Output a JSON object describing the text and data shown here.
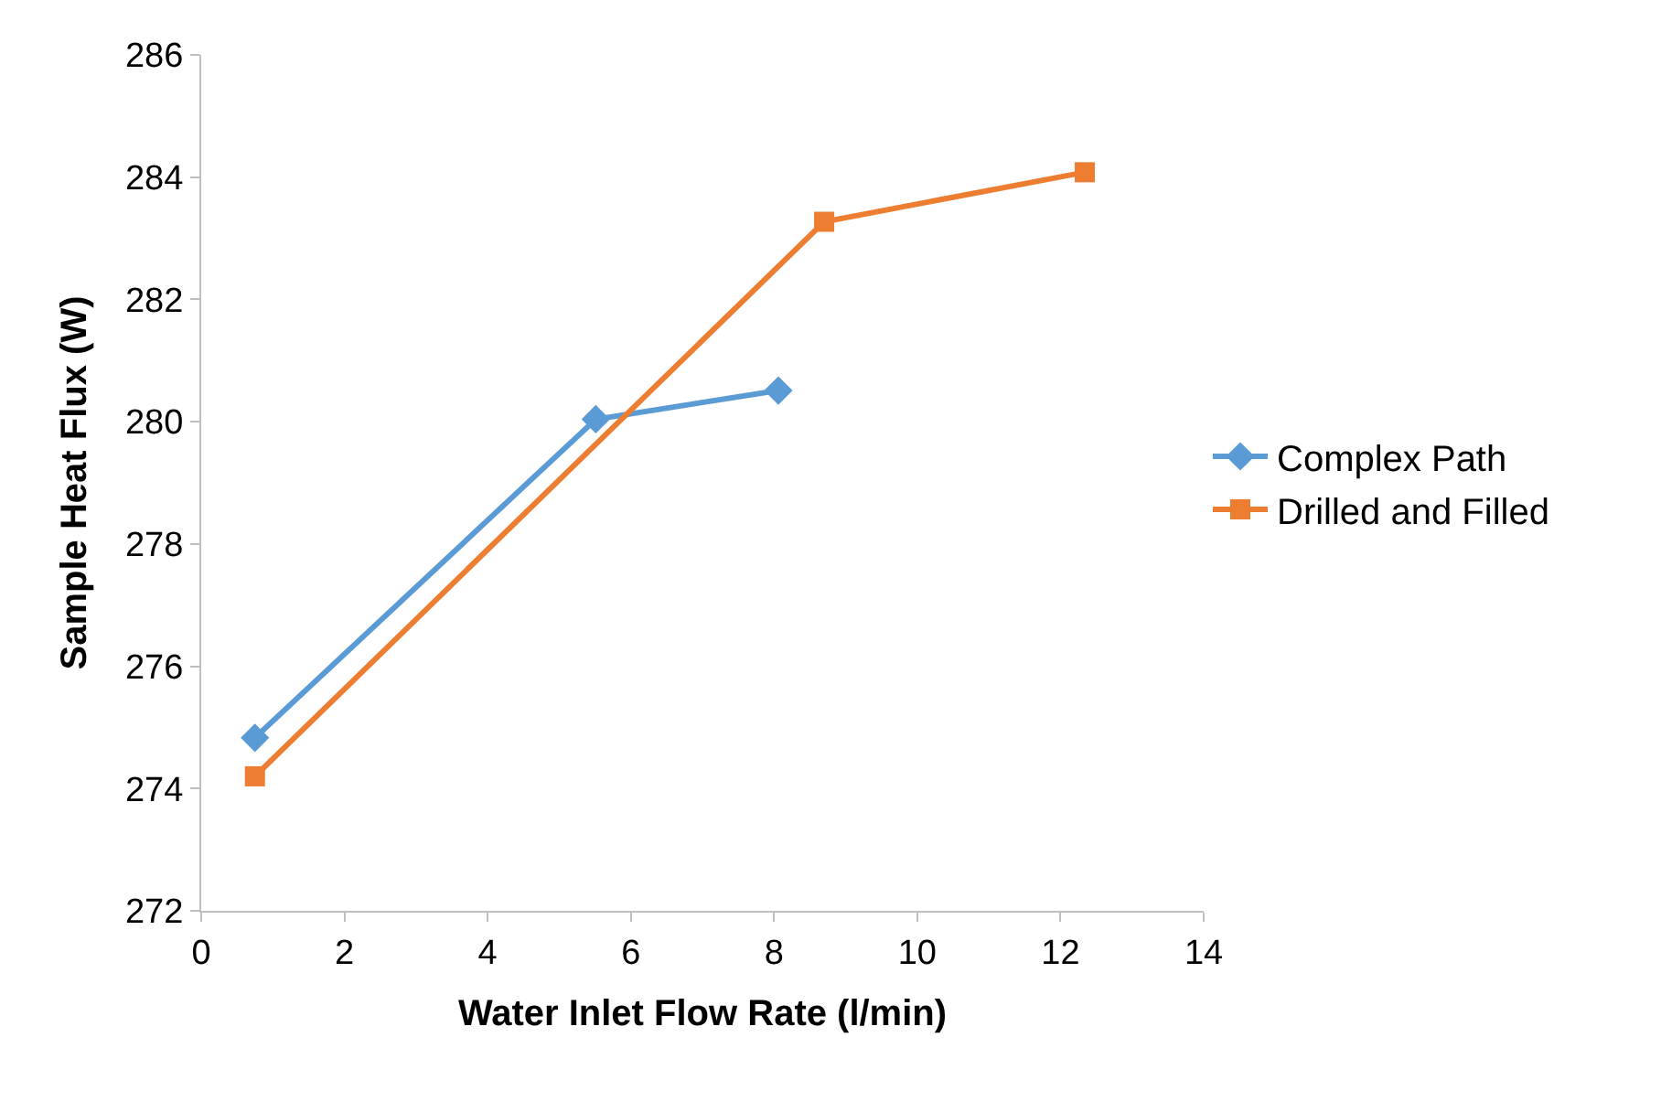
{
  "chart_data": {
    "type": "line",
    "xlabel": "Water Inlet Flow Rate (l/min)",
    "ylabel": "Sample Heat Flux (W)",
    "xlim": [
      0,
      14
    ],
    "xticks": [
      0,
      2,
      4,
      6,
      8,
      10,
      12,
      14
    ],
    "ylim": [
      272,
      286
    ],
    "yticks": [
      272,
      274,
      276,
      278,
      280,
      282,
      284,
      286
    ],
    "legend": "right",
    "series": [
      {
        "name": "Complex Path",
        "color": "#5b9bd5",
        "marker": "diamond",
        "x": [
          0.75,
          5.51,
          8.06
        ],
        "values": [
          274.83,
          280.04,
          280.51
        ]
      },
      {
        "name": "Drilled and Filled",
        "color": "#ed7d31",
        "marker": "square",
        "x": [
          0.75,
          8.7,
          12.34
        ],
        "values": [
          274.2,
          283.27,
          284.08
        ]
      }
    ]
  }
}
